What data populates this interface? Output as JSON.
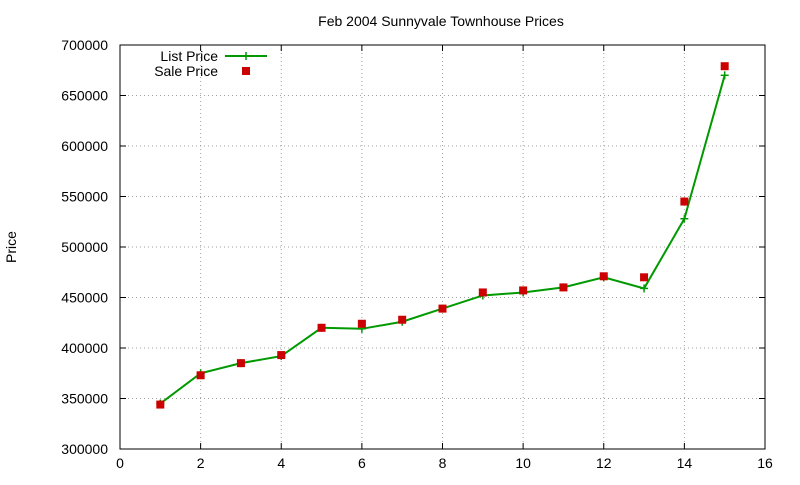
{
  "chart_data": {
    "type": "line",
    "title": "Feb 2004 Sunnyvale Townhouse Prices",
    "xlabel": "",
    "ylabel": "Price",
    "xlim": [
      0,
      16
    ],
    "ylim": [
      300000,
      700000
    ],
    "xticks": [
      0,
      2,
      4,
      6,
      8,
      10,
      12,
      14,
      16
    ],
    "yticks": [
      300000,
      350000,
      400000,
      450000,
      500000,
      550000,
      600000,
      650000,
      700000
    ],
    "grid": true,
    "legend_position": "top-left",
    "series": [
      {
        "name": "List Price",
        "style": "line-with-plus-markers",
        "color": "#009900",
        "x": [
          1,
          2,
          3,
          4,
          5,
          6,
          7,
          8,
          9,
          10,
          11,
          12,
          13,
          14,
          15
        ],
        "y": [
          345000,
          375000,
          385000,
          392000,
          420000,
          419000,
          426000,
          439000,
          452000,
          455000,
          460000,
          470000,
          459000,
          528000,
          670000
        ]
      },
      {
        "name": "Sale Price",
        "style": "square-markers",
        "color": "#cc0000",
        "x": [
          1,
          2,
          3,
          4,
          5,
          6,
          7,
          8,
          9,
          10,
          11,
          12,
          13,
          14,
          15
        ],
        "y": [
          344000,
          373000,
          385000,
          393000,
          420000,
          424000,
          428000,
          439000,
          455000,
          457000,
          460000,
          471000,
          470000,
          545000,
          679000
        ]
      }
    ]
  }
}
